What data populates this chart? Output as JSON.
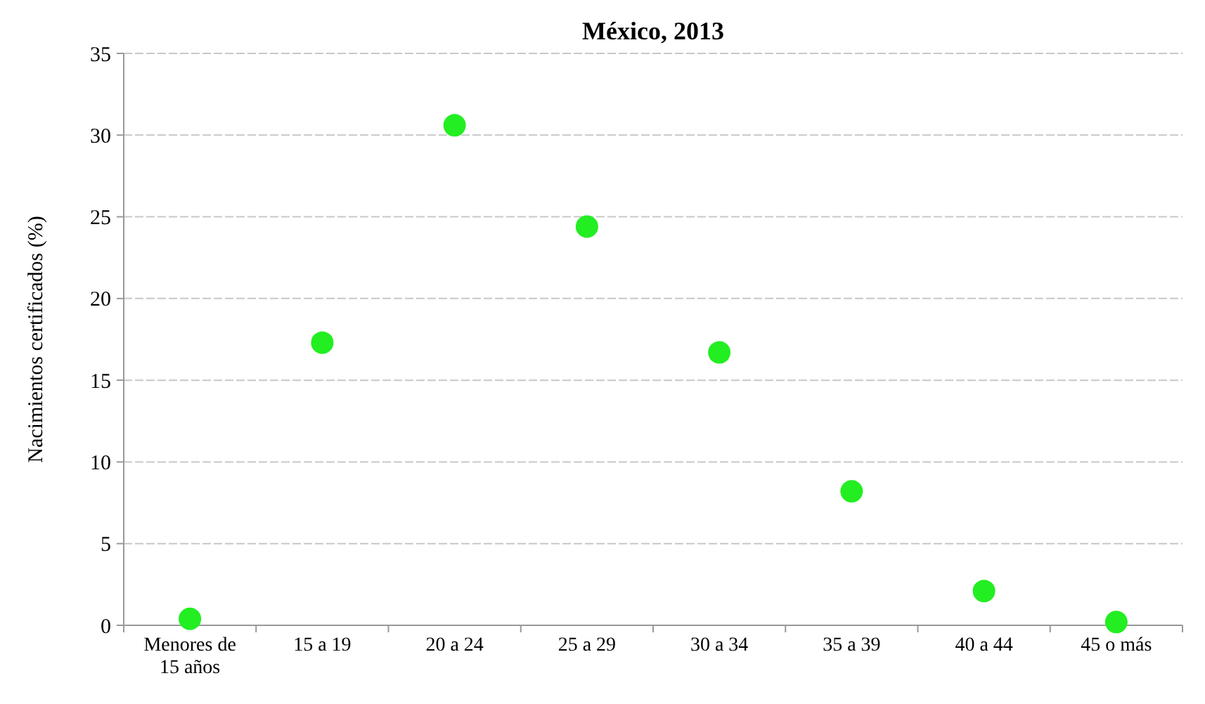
{
  "chart_data": {
    "type": "scatter",
    "title": "México, 2013",
    "ylabel": "Nacimientos certificados (%)",
    "categories": [
      "Menores de 15 años",
      "15 a 19",
      "20 a 24",
      "25 a 29",
      "30 a 34",
      "35 a 39",
      "40 a 44",
      "45 o más"
    ],
    "series": [
      {
        "color": "#22ee22",
        "values": [
          0.4,
          17.3,
          30.6,
          24.4,
          16.7,
          8.2,
          2.1,
          0.2
        ]
      }
    ],
    "ylim": [
      0,
      35
    ],
    "yticks": [
      0,
      5,
      10,
      15,
      20,
      25,
      30,
      35
    ],
    "grid": "y",
    "marker": "circle"
  }
}
